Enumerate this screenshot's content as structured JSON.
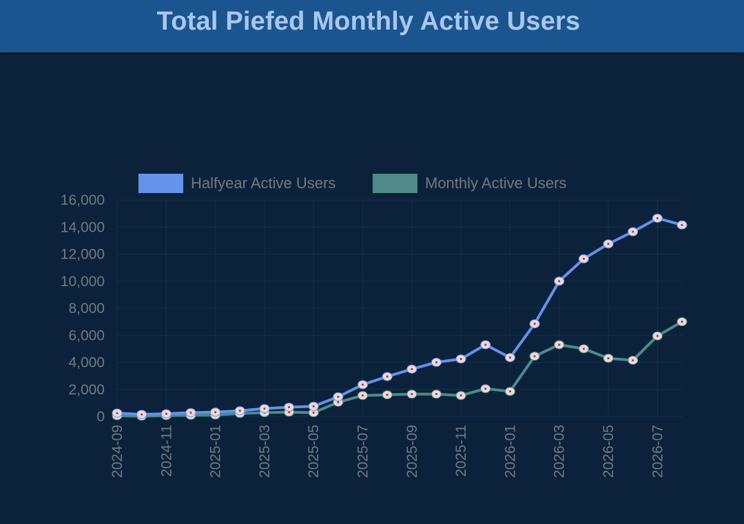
{
  "header": {
    "title": "Total Piefed Monthly Active Users"
  },
  "colors": {
    "background": "#0b223a",
    "header": "#1b5590",
    "title": "#a9c7ee",
    "halfyear": "#6592ea",
    "monthly": "#4f8a88",
    "marker_fill": "#e9dadd",
    "marker_dot": "#c0392b",
    "grid": "#14304c",
    "text": "#707a86"
  },
  "chart_data": {
    "type": "line",
    "title": "Total Piefed Monthly Active Users",
    "x": [
      "2024-09",
      "2024-10",
      "2024-11",
      "2024-12",
      "2025-01",
      "2025-02",
      "2025-03",
      "2025-04",
      "2025-05",
      "2025-06",
      "2025-07",
      "2025-08",
      "2025-09",
      "2025-10",
      "2025-11",
      "2025-12",
      "2026-01",
      "2026-02",
      "2026-03",
      "2026-04",
      "2026-05",
      "2026-06",
      "2026-07",
      "2026-08"
    ],
    "x_tick_labels": [
      "2024-09",
      "2024-11",
      "2025-01",
      "2025-03",
      "2025-05",
      "2025-07",
      "2025-09",
      "2025-11",
      "2026-01",
      "2026-03",
      "2026-05",
      "2026-07"
    ],
    "y_tick_labels": [
      "0",
      "2,000",
      "4,000",
      "6,000",
      "8,000",
      "10,000",
      "12,000",
      "14,000",
      "16,000"
    ],
    "ylim": [
      0,
      16000
    ],
    "grid": true,
    "legend": "top",
    "series": [
      {
        "name": "Halfyear Active Users",
        "color": "#6592ea",
        "values": [
          250,
          150,
          200,
          280,
          320,
          420,
          580,
          680,
          750,
          1450,
          2350,
          2950,
          3500,
          4000,
          4250,
          5300,
          4350,
          6850,
          10000,
          11650,
          12750,
          13650,
          14650,
          14150
        ]
      },
      {
        "name": "Monthly Active Users",
        "color": "#4f8a88",
        "values": [
          50,
          20,
          60,
          80,
          100,
          220,
          280,
          320,
          280,
          1050,
          1550,
          1600,
          1650,
          1650,
          1550,
          2050,
          1850,
          4450,
          5300,
          5000,
          4300,
          4150,
          5950,
          7000
        ]
      }
    ]
  }
}
